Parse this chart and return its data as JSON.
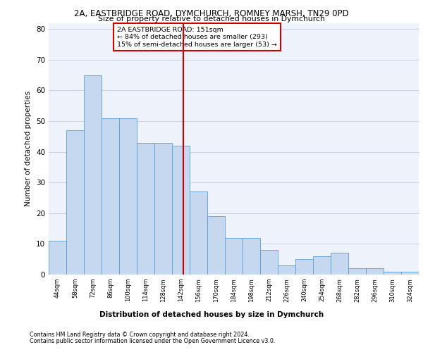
{
  "title_line1": "2A, EASTBRIDGE ROAD, DYMCHURCH, ROMNEY MARSH, TN29 0PD",
  "title_line2": "Size of property relative to detached houses in Dymchurch",
  "xlabel": "Distribution of detached houses by size in Dymchurch",
  "ylabel": "Number of detached properties",
  "bar_labels": [
    "44sqm",
    "58sqm",
    "72sqm",
    "86sqm",
    "100sqm",
    "114sqm",
    "128sqm",
    "142sqm",
    "156sqm",
    "170sqm",
    "184sqm",
    "198sqm",
    "212sqm",
    "226sqm",
    "240sqm",
    "254sqm",
    "268sqm",
    "282sqm",
    "296sqm",
    "310sqm",
    "324sqm"
  ],
  "bar_values": [
    11,
    47,
    65,
    51,
    51,
    43,
    43,
    42,
    27,
    19,
    12,
    12,
    8,
    3,
    5,
    6,
    7,
    2,
    2,
    1,
    1
  ],
  "bar_color": "#c5d8f0",
  "bar_edge_color": "#5a9fd4",
  "ylim": [
    0,
    82
  ],
  "yticks": [
    0,
    10,
    20,
    30,
    40,
    50,
    60,
    70,
    80
  ],
  "annotation_text_line1": "2A EASTBRIDGE ROAD: 151sqm",
  "annotation_text_line2": "← 84% of detached houses are smaller (293)",
  "annotation_text_line3": "15% of semi-detached houses are larger (53) →",
  "annotation_box_color": "#ffffff",
  "annotation_box_edge": "#cc0000",
  "vline_color": "#cc0000",
  "grid_color": "#c8d0e0",
  "background_color": "#eef2fa",
  "footer_line1": "Contains HM Land Registry data © Crown copyright and database right 2024.",
  "footer_line2": "Contains public sector information licensed under the Open Government Licence v3.0."
}
